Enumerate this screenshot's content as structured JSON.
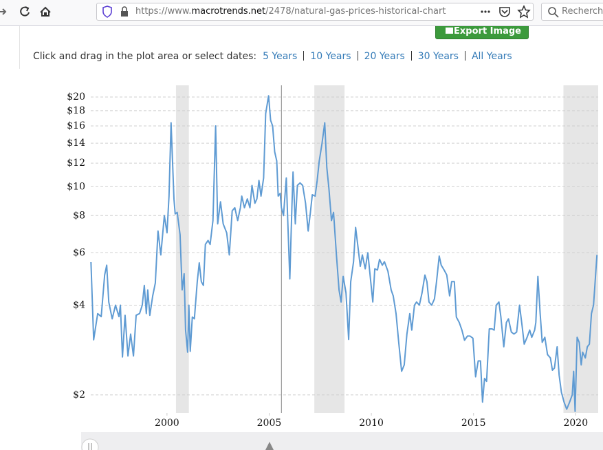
{
  "browser": {
    "url_scheme": "https://www.",
    "url_domain": "macrotrends.net",
    "url_path": "/2478/natural-gas-prices-historical-chart",
    "search_placeholder": "Recherche"
  },
  "toolbar": {
    "export_button": "Export Image",
    "prompt": "Click and drag in the plot area or select dates:",
    "ranges": [
      "5 Years",
      "10 Years",
      "20 Years",
      "30 Years",
      "All Years"
    ]
  },
  "chart_data": {
    "type": "line",
    "log_y": true,
    "grid": true,
    "xlim": [
      1996.27,
      2021.1
    ],
    "xticks": [
      2000,
      2005,
      2010,
      2015,
      2020
    ],
    "ylim": [
      1.74,
      21.9
    ],
    "yticks": [
      {
        "value": 2,
        "label": "$2"
      },
      {
        "value": 4,
        "label": "$4"
      },
      {
        "value": 6,
        "label": "$6"
      },
      {
        "value": 8,
        "label": "$8"
      },
      {
        "value": 10,
        "label": "$10"
      },
      {
        "value": 12,
        "label": "$12"
      },
      {
        "value": 14,
        "label": "$14"
      },
      {
        "value": 16,
        "label": "$16"
      },
      {
        "value": 18,
        "label": "$18"
      },
      {
        "value": 20,
        "label": "$20"
      }
    ],
    "shaded_ranges": [
      [
        2000.44,
        2001.07
      ],
      [
        2007.21,
        2008.69
      ],
      [
        2019.4,
        2021.1
      ]
    ],
    "crosshair_x": 2005.6,
    "series": [
      {
        "color": "#5f9bd3",
        "x": [
          1996.28,
          1996.41,
          1996.61,
          1996.78,
          1996.95,
          1997.05,
          1997.15,
          1997.32,
          1997.48,
          1997.65,
          1997.72,
          1997.82,
          1997.95,
          1998.09,
          1998.22,
          1998.36,
          1998.49,
          1998.66,
          1998.79,
          1998.89,
          1998.99,
          1999.06,
          1999.16,
          1999.3,
          1999.43,
          1999.56,
          1999.7,
          1999.87,
          2000.0,
          2000.1,
          2000.2,
          2000.34,
          2000.4,
          2000.5,
          2000.64,
          2000.74,
          2000.84,
          2000.91,
          2001.01,
          2001.07,
          2001.14,
          2001.24,
          2001.34,
          2001.48,
          2001.58,
          2001.68,
          2001.78,
          2001.88,
          2002.01,
          2002.11,
          2002.25,
          2002.38,
          2002.48,
          2002.62,
          2002.75,
          2002.92,
          2003.05,
          2003.19,
          2003.32,
          2003.46,
          2003.59,
          2003.66,
          2003.79,
          2003.93,
          2004.06,
          2004.16,
          2004.3,
          2004.4,
          2004.5,
          2004.6,
          2004.73,
          2004.83,
          2004.97,
          2005.07,
          2005.17,
          2005.27,
          2005.37,
          2005.44,
          2005.54,
          2005.6,
          2005.7,
          2005.84,
          2005.91,
          2006.01,
          2006.11,
          2006.17,
          2006.28,
          2006.38,
          2006.51,
          2006.64,
          2006.78,
          2006.91,
          2007.01,
          2007.11,
          2007.25,
          2007.35,
          2007.45,
          2007.58,
          2007.72,
          2007.82,
          2007.92,
          2008.05,
          2008.15,
          2008.29,
          2008.42,
          2008.52,
          2008.62,
          2008.76,
          2008.89,
          2008.99,
          2009.13,
          2009.23,
          2009.33,
          2009.46,
          2009.56,
          2009.7,
          2009.83,
          2009.97,
          2010.07,
          2010.17,
          2010.3,
          2010.4,
          2010.54,
          2010.64,
          2010.81,
          2010.97,
          2011.07,
          2011.21,
          2011.34,
          2011.48,
          2011.61,
          2011.74,
          2011.88,
          2011.98,
          2012.11,
          2012.21,
          2012.35,
          2012.48,
          2012.62,
          2012.72,
          2012.82,
          2012.95,
          2013.09,
          2013.19,
          2013.32,
          2013.42,
          2013.56,
          2013.69,
          2013.83,
          2013.93,
          2014.06,
          2014.16,
          2014.3,
          2014.43,
          2014.56,
          2014.7,
          2014.83,
          2014.97,
          2015.1,
          2015.23,
          2015.34,
          2015.44,
          2015.54,
          2015.64,
          2015.77,
          2015.91,
          2016.01,
          2016.11,
          2016.24,
          2016.34,
          2016.48,
          2016.61,
          2016.71,
          2016.85,
          2016.98,
          2017.11,
          2017.25,
          2017.38,
          2017.48,
          2017.62,
          2017.75,
          2017.85,
          2017.99,
          2018.05,
          2018.15,
          2018.26,
          2018.36,
          2018.49,
          2018.62,
          2018.76,
          2018.86,
          2018.96,
          2019.09,
          2019.19,
          2019.3,
          2019.43,
          2019.56,
          2019.7,
          2019.83,
          2019.9,
          2019.97,
          2020.07,
          2020.17,
          2020.27,
          2020.34,
          2020.47,
          2020.57,
          2020.67,
          2020.77,
          2020.87,
          2020.94,
          2021.04
        ],
        "values": [
          5.58,
          3.06,
          3.75,
          3.66,
          5.05,
          5.45,
          4.1,
          3.6,
          4.0,
          3.66,
          4.0,
          2.68,
          3.7,
          2.7,
          3.2,
          2.7,
          3.7,
          3.75,
          4.0,
          4.66,
          3.75,
          4.5,
          3.7,
          4.3,
          4.75,
          7.1,
          5.9,
          8.0,
          7.0,
          9.3,
          16.4,
          9.1,
          8.1,
          8.2,
          6.9,
          4.5,
          5.1,
          3.3,
          2.78,
          4.0,
          2.8,
          3.65,
          3.6,
          4.8,
          5.55,
          4.8,
          4.66,
          6.4,
          6.6,
          6.4,
          7.7,
          16.0,
          7.5,
          8.9,
          7.5,
          7.0,
          5.9,
          8.3,
          8.5,
          7.7,
          8.5,
          9.3,
          8.5,
          9.1,
          8.5,
          10.1,
          8.8,
          9.1,
          10.5,
          9.3,
          10.7,
          17.6,
          20.2,
          16.7,
          16.0,
          13.1,
          12.2,
          9.3,
          9.5,
          8.5,
          8.0,
          10.7,
          7.7,
          4.9,
          8.5,
          11.2,
          7.5,
          10.1,
          10.3,
          10.1,
          8.8,
          7.1,
          8.1,
          9.4,
          9.3,
          10.5,
          12.2,
          13.9,
          16.4,
          11.6,
          9.9,
          7.7,
          8.2,
          5.9,
          4.5,
          4.1,
          5.0,
          4.4,
          3.07,
          4.8,
          5.6,
          7.3,
          6.4,
          5.4,
          5.9,
          5.3,
          6.0,
          4.8,
          4.1,
          5.3,
          5.25,
          5.7,
          5.45,
          5.6,
          5.2,
          4.5,
          4.3,
          3.75,
          3.0,
          2.4,
          2.52,
          3.2,
          3.75,
          3.3,
          4.0,
          4.1,
          4.0,
          4.4,
          5.05,
          4.8,
          4.1,
          4.0,
          4.2,
          4.8,
          5.85,
          5.45,
          5.25,
          5.05,
          4.3,
          4.8,
          4.8,
          3.65,
          3.5,
          3.3,
          3.05,
          3.15,
          3.15,
          3.1,
          2.3,
          2.6,
          2.6,
          1.89,
          2.27,
          2.22,
          3.33,
          3.33,
          3.3,
          4.0,
          4.1,
          3.65,
          2.9,
          3.5,
          3.6,
          3.25,
          3.2,
          3.25,
          4.0,
          3.4,
          2.96,
          3.12,
          3.3,
          3.12,
          3.3,
          3.5,
          5.0,
          3.75,
          3.0,
          3.12,
          2.73,
          2.66,
          2.42,
          2.46,
          2.9,
          2.33,
          2.04,
          1.89,
          1.79,
          1.89,
          2.0,
          2.4,
          1.76,
          3.12,
          3.0,
          2.52,
          2.78,
          2.66,
          2.9,
          2.96,
          3.75,
          4.0,
          4.66,
          5.9
        ]
      }
    ]
  }
}
